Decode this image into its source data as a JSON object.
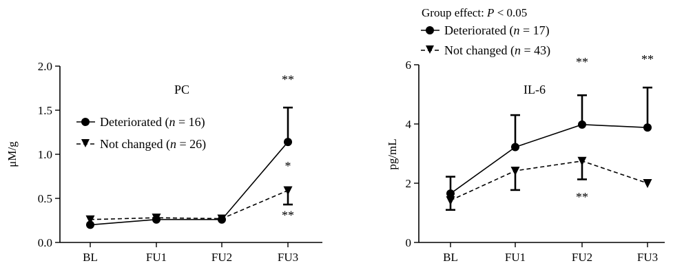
{
  "chart_data": [
    {
      "type": "line",
      "title": "PC",
      "xlabel": "",
      "ylabel": "μM/g",
      "categories": [
        "BL",
        "FU1",
        "FU2",
        "FU3"
      ],
      "ylim": [
        0,
        2.0
      ],
      "yticks": [
        "0.0",
        "0.5",
        "1.0",
        "1.5",
        "2.0"
      ],
      "legend_position": "upper-left",
      "series": [
        {
          "name": "Deteriorated",
          "n_label": "16",
          "marker": "circle",
          "line_style": "solid",
          "values": [
            0.2,
            0.26,
            0.26,
            1.14
          ],
          "error_upper": [
            null,
            null,
            null,
            1.53
          ],
          "error_lower": [
            null,
            null,
            null,
            null
          ]
        },
        {
          "name": "Not changed",
          "n_label": "26",
          "marker": "triangle-down",
          "line_style": "dashed",
          "values": [
            0.26,
            0.28,
            0.27,
            0.59
          ],
          "error_upper": [
            null,
            null,
            null,
            null
          ],
          "error_lower": [
            null,
            null,
            null,
            0.43
          ]
        }
      ],
      "annotations": [
        {
          "text": "**",
          "category": "FU3",
          "y": 1.8
        },
        {
          "text": "*",
          "category": "FU3",
          "y": 0.82
        },
        {
          "text": "**",
          "category": "FU3",
          "y": 0.26
        }
      ]
    },
    {
      "type": "line",
      "title": "IL-6",
      "xlabel": "",
      "ylabel": "pg/mL",
      "categories": [
        "BL",
        "FU1",
        "FU2",
        "FU3"
      ],
      "ylim": [
        0,
        6
      ],
      "yticks": [
        "0",
        "2",
        "4",
        "6"
      ],
      "group_effect_text": "Group effect: ",
      "group_effect_stat": "P",
      "group_effect_value": " < 0.05",
      "legend_position": "top-left",
      "series": [
        {
          "name": "Deteriorated",
          "n_label": "17",
          "marker": "circle",
          "line_style": "solid",
          "values": [
            1.65,
            3.22,
            3.98,
            3.88
          ],
          "error_upper": [
            2.22,
            4.3,
            4.97,
            5.23
          ],
          "error_lower": [
            null,
            null,
            null,
            null
          ]
        },
        {
          "name": "Not changed",
          "n_label": "43",
          "marker": "triangle-down",
          "line_style": "dashed",
          "values": [
            1.42,
            2.42,
            2.75,
            2.0
          ],
          "error_upper": [
            null,
            null,
            null,
            null
          ],
          "error_lower": [
            1.1,
            1.77,
            2.13,
            null
          ]
        }
      ],
      "annotations": [
        {
          "text": "**",
          "category": "FU2",
          "y": 5.95
        },
        {
          "text": "**",
          "category": "FU3",
          "y": 6.05
        },
        {
          "text": "**",
          "category": "FU2",
          "y": 1.4
        }
      ]
    }
  ]
}
